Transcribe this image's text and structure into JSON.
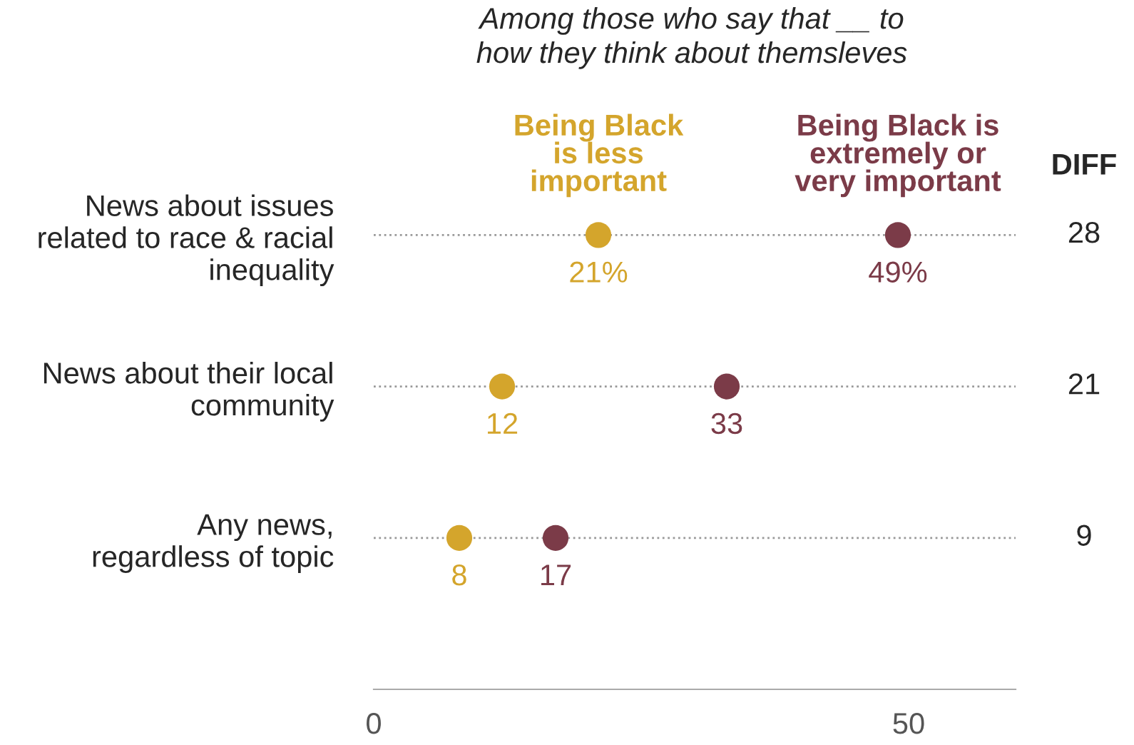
{
  "chart_data": {
    "type": "scatter",
    "orientation": "horizontal",
    "subtitle": "Among those who say that __ to\nhow they think about themsleves",
    "categories": [
      "News about issues\nrelated to race & racial\ninequality",
      "News about their local\ncommunity",
      "Any news,\nregardless of topic"
    ],
    "series": [
      {
        "name": "Being Black\nis less\nimportant",
        "color": "#d4a52c",
        "values": [
          21,
          12,
          8
        ],
        "value_labels": [
          "21%",
          "12",
          "8"
        ]
      },
      {
        "name": "Being Black is\nextremely or\nvery important",
        "color": "#7b3b48",
        "values": [
          49,
          33,
          17
        ],
        "value_labels": [
          "49%",
          "33",
          "17"
        ]
      }
    ],
    "annotations": [
      "DIFF",
      "28",
      "21",
      "9"
    ],
    "xlim": [
      0,
      60
    ],
    "xticks": [
      0,
      50
    ],
    "grid": "y",
    "line_style": "dotted",
    "marker": "circle",
    "legend": false
  }
}
